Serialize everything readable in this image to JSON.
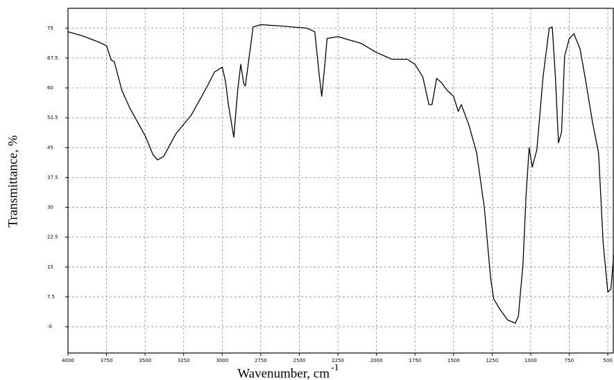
{
  "chart_data": {
    "type": "line",
    "xlabel": "Wavenumber, cm",
    "xlabel_superscript": "-1",
    "ylabel": "Transmittance, %",
    "color": "#000000",
    "grid": true,
    "xlim": [
      4000,
      460
    ],
    "ylim": [
      -6.6,
      80
    ],
    "xticks": [
      4000,
      3750,
      3500,
      3250,
      3000,
      2750,
      2500,
      2250,
      2000,
      1750,
      1500,
      1250,
      1000,
      750,
      500
    ],
    "yticks": [
      {
        "value": 0,
        "label": "-0"
      },
      7.5,
      15,
      22.5,
      30,
      37.5,
      45,
      52.5,
      60,
      67.5,
      75
    ],
    "x": [
      4000,
      3900,
      3800,
      3750,
      3720,
      3700,
      3650,
      3600,
      3500,
      3450,
      3420,
      3380,
      3300,
      3200,
      3100,
      3050,
      3000,
      2980,
      2960,
      2925,
      2900,
      2880,
      2860,
      2850,
      2800,
      2750,
      2600,
      2450,
      2400,
      2370,
      2355,
      2340,
      2320,
      2250,
      2100,
      2000,
      1900,
      1800,
      1750,
      1700,
      1660,
      1640,
      1610,
      1580,
      1540,
      1500,
      1470,
      1450,
      1400,
      1350,
      1300,
      1260,
      1240,
      1200,
      1150,
      1100,
      1080,
      1050,
      1030,
      1010,
      990,
      960,
      920,
      880,
      860,
      840,
      820,
      800,
      780,
      750,
      720,
      680,
      640,
      600,
      560,
      530,
      500,
      480,
      462
    ],
    "values": [
      74.1,
      73,
      71.5,
      70.6,
      67,
      66.6,
      59.3,
      55,
      48,
      43.3,
      41.9,
      42.8,
      48.5,
      53.2,
      60.2,
      64,
      65.2,
      61.9,
      55.8,
      47.6,
      59.3,
      65.9,
      61,
      60.5,
      75.3,
      75.9,
      75.5,
      75,
      74.1,
      62.8,
      57.9,
      63.7,
      72.4,
      72.9,
      71.2,
      68.9,
      67.2,
      67.2,
      65.9,
      62.8,
      55.8,
      55.8,
      62.4,
      61.4,
      59.3,
      57.9,
      54.1,
      55.8,
      50.6,
      43.6,
      29.7,
      12.2,
      7,
      4.4,
      1.7,
      0.9,
      2.6,
      15.7,
      33.1,
      45,
      40.1,
      44.5,
      62.8,
      75,
      75.3,
      62.8,
      46.2,
      48.9,
      68,
      72.4,
      73.6,
      69.8,
      61,
      51.5,
      43.6,
      20.9,
      8.7,
      9.5,
      18
    ]
  }
}
